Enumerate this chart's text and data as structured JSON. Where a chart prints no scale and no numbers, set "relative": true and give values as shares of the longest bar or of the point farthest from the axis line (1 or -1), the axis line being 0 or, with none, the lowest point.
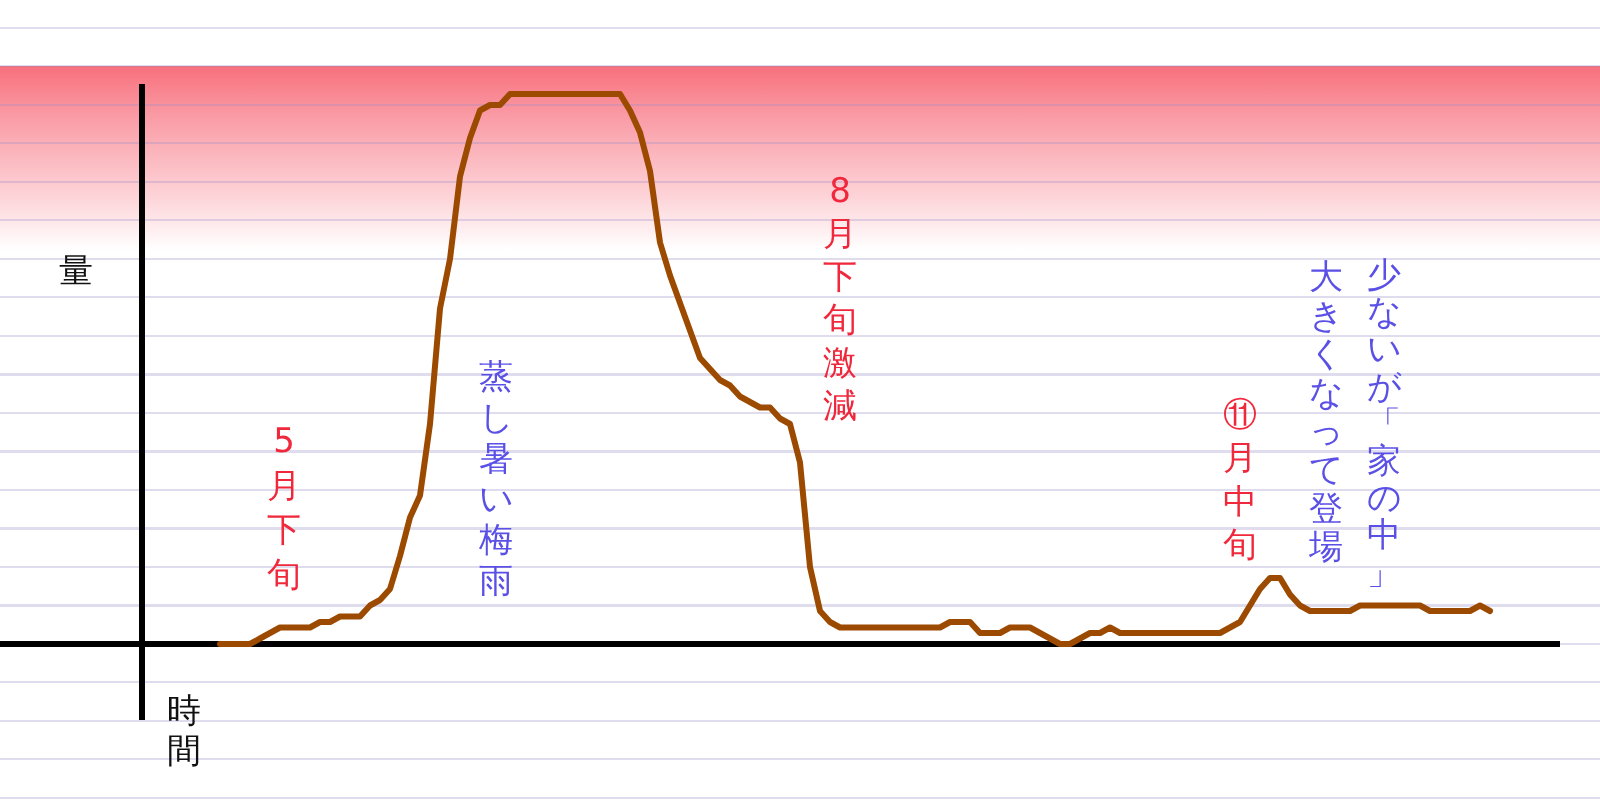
{
  "chart_data": {
    "type": "line",
    "xlabel": "時間",
    "ylabel": "量",
    "relative": true,
    "categories": [
      null,
      null,
      null,
      null,
      null,
      null,
      null,
      null,
      null,
      null,
      null,
      null,
      null,
      null,
      null,
      null,
      null,
      null,
      null,
      null,
      null,
      null,
      null,
      null,
      null,
      null,
      null,
      null,
      null,
      null,
      null,
      null,
      null,
      null,
      null,
      null,
      null,
      null,
      null,
      null,
      null,
      null,
      null,
      null,
      null,
      null,
      null,
      null,
      null,
      null,
      null,
      null,
      null,
      null,
      null,
      null,
      null,
      null,
      null,
      null,
      null,
      null,
      null,
      null,
      null,
      null,
      null,
      null,
      null,
      null,
      null,
      null,
      null,
      null,
      null,
      null,
      null,
      null,
      null,
      null,
      null,
      null,
      null,
      null,
      null,
      null,
      null,
      null,
      null,
      null,
      null,
      null,
      null,
      null,
      null,
      null,
      null,
      null,
      null,
      null,
      null,
      null,
      null,
      null,
      null,
      null,
      null,
      null,
      null,
      null,
      null,
      null,
      null,
      null,
      null,
      null,
      null,
      null,
      null,
      null,
      null,
      null,
      null,
      null,
      null,
      null,
      null,
      null
    ],
    "series": [
      {
        "color": "#9c4a00",
        "values": [
          0.0,
          0.0,
          0.0,
          0.0,
          0.01,
          0.02,
          0.03,
          0.03,
          0.03,
          0.03,
          0.04,
          0.04,
          0.05,
          0.05,
          0.05,
          0.07,
          0.08,
          0.1,
          0.16,
          0.23,
          0.27,
          0.4,
          0.61,
          0.7,
          0.85,
          0.92,
          0.97,
          0.98,
          0.98,
          1.0,
          1.0,
          1.0,
          1.0,
          1.0,
          1.0,
          1.0,
          1.0,
          1.0,
          1.0,
          1.0,
          1.0,
          0.97,
          0.93,
          0.86,
          0.73,
          0.67,
          0.62,
          0.57,
          0.52,
          0.5,
          0.48,
          0.47,
          0.45,
          0.44,
          0.43,
          0.43,
          0.41,
          0.4,
          0.33,
          0.14,
          0.06,
          0.04,
          0.03,
          0.03,
          0.03,
          0.03,
          0.03,
          0.03,
          0.03,
          0.03,
          0.03,
          0.03,
          0.03,
          0.04,
          0.04,
          0.04,
          0.02,
          0.02,
          0.02,
          0.03,
          0.03,
          0.03,
          0.02,
          0.01,
          0.0,
          0.0,
          0.01,
          0.02,
          0.02,
          0.03,
          0.02,
          0.02,
          0.02,
          0.02,
          0.02,
          0.02,
          0.02,
          0.02,
          0.02,
          0.02,
          0.02,
          0.03,
          0.04,
          0.07,
          0.1,
          0.12,
          0.12,
          0.09,
          0.07,
          0.06,
          0.06,
          0.06,
          0.06,
          0.06,
          0.07,
          0.07,
          0.07,
          0.07,
          0.07,
          0.07,
          0.07,
          0.06,
          0.06,
          0.06,
          0.06,
          0.06,
          0.07,
          0.06
        ]
      }
    ],
    "annotations": [
      "5月下旬",
      "蒸し暑い梅雨",
      "8月下旬激減",
      "⑪月中旬",
      "少ないが「家の中」",
      "大きくなって登場"
    ]
  }
}
